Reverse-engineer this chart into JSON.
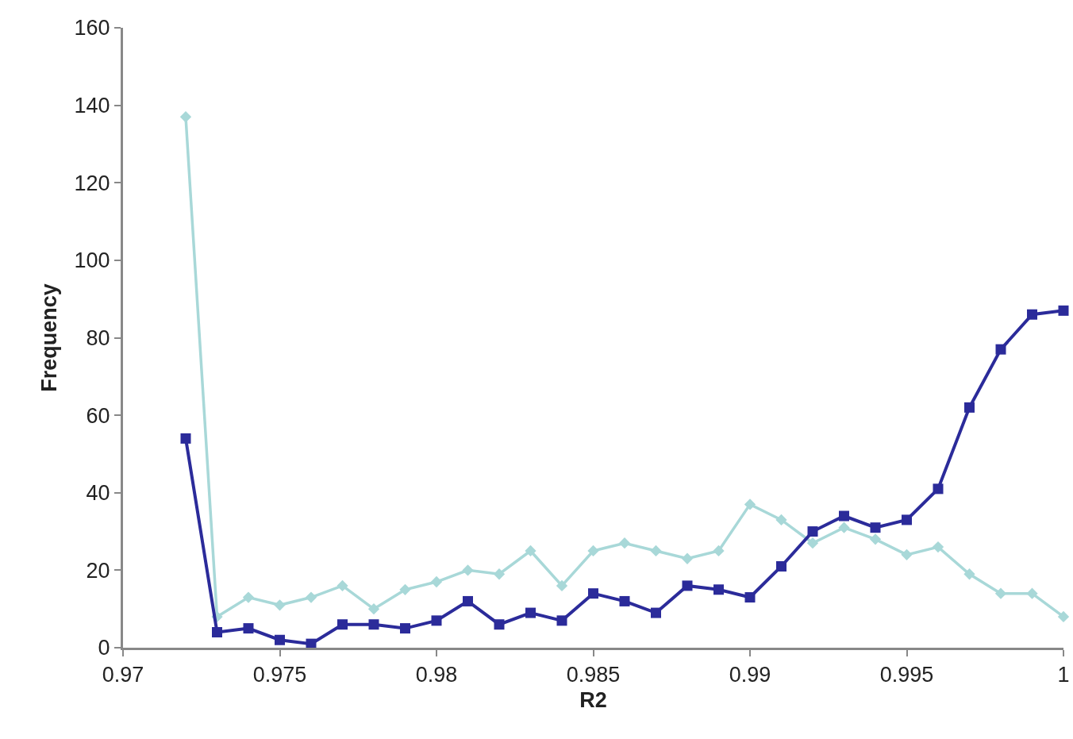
{
  "chart_data": {
    "type": "line",
    "xlabel": "R2",
    "ylabel": "Frequency",
    "x": [
      0.972,
      0.973,
      0.974,
      0.975,
      0.976,
      0.977,
      0.978,
      0.979,
      0.98,
      0.981,
      0.982,
      0.983,
      0.984,
      0.985,
      0.986,
      0.987,
      0.988,
      0.989,
      0.99,
      0.991,
      0.992,
      0.993,
      0.994,
      0.995,
      0.996,
      0.997,
      0.998,
      0.999,
      1
    ],
    "series": [
      {
        "color": "#a8d8d8",
        "marker": "diamond",
        "values": [
          137,
          8,
          13,
          11,
          13,
          16,
          10,
          15,
          17,
          20,
          19,
          25,
          16,
          25,
          27,
          25,
          23,
          25,
          37,
          33,
          27,
          31,
          28,
          24,
          26,
          19,
          14,
          14,
          8
        ]
      },
      {
        "color": "#2b2b9a",
        "marker": "square",
        "values": [
          54,
          4,
          5,
          2,
          1,
          6,
          6,
          5,
          7,
          12,
          6,
          9,
          7,
          14,
          12,
          9,
          16,
          15,
          13,
          21,
          30,
          34,
          31,
          33,
          41,
          62,
          77,
          86,
          87
        ]
      }
    ],
    "xlim": [
      0.97,
      1
    ],
    "xticks": [
      0.97,
      0.975,
      0.98,
      0.985,
      0.99,
      0.995,
      1
    ],
    "ylim": [
      0,
      160
    ],
    "yticks": [
      0,
      20,
      40,
      60,
      80,
      100,
      120,
      140,
      160
    ]
  }
}
